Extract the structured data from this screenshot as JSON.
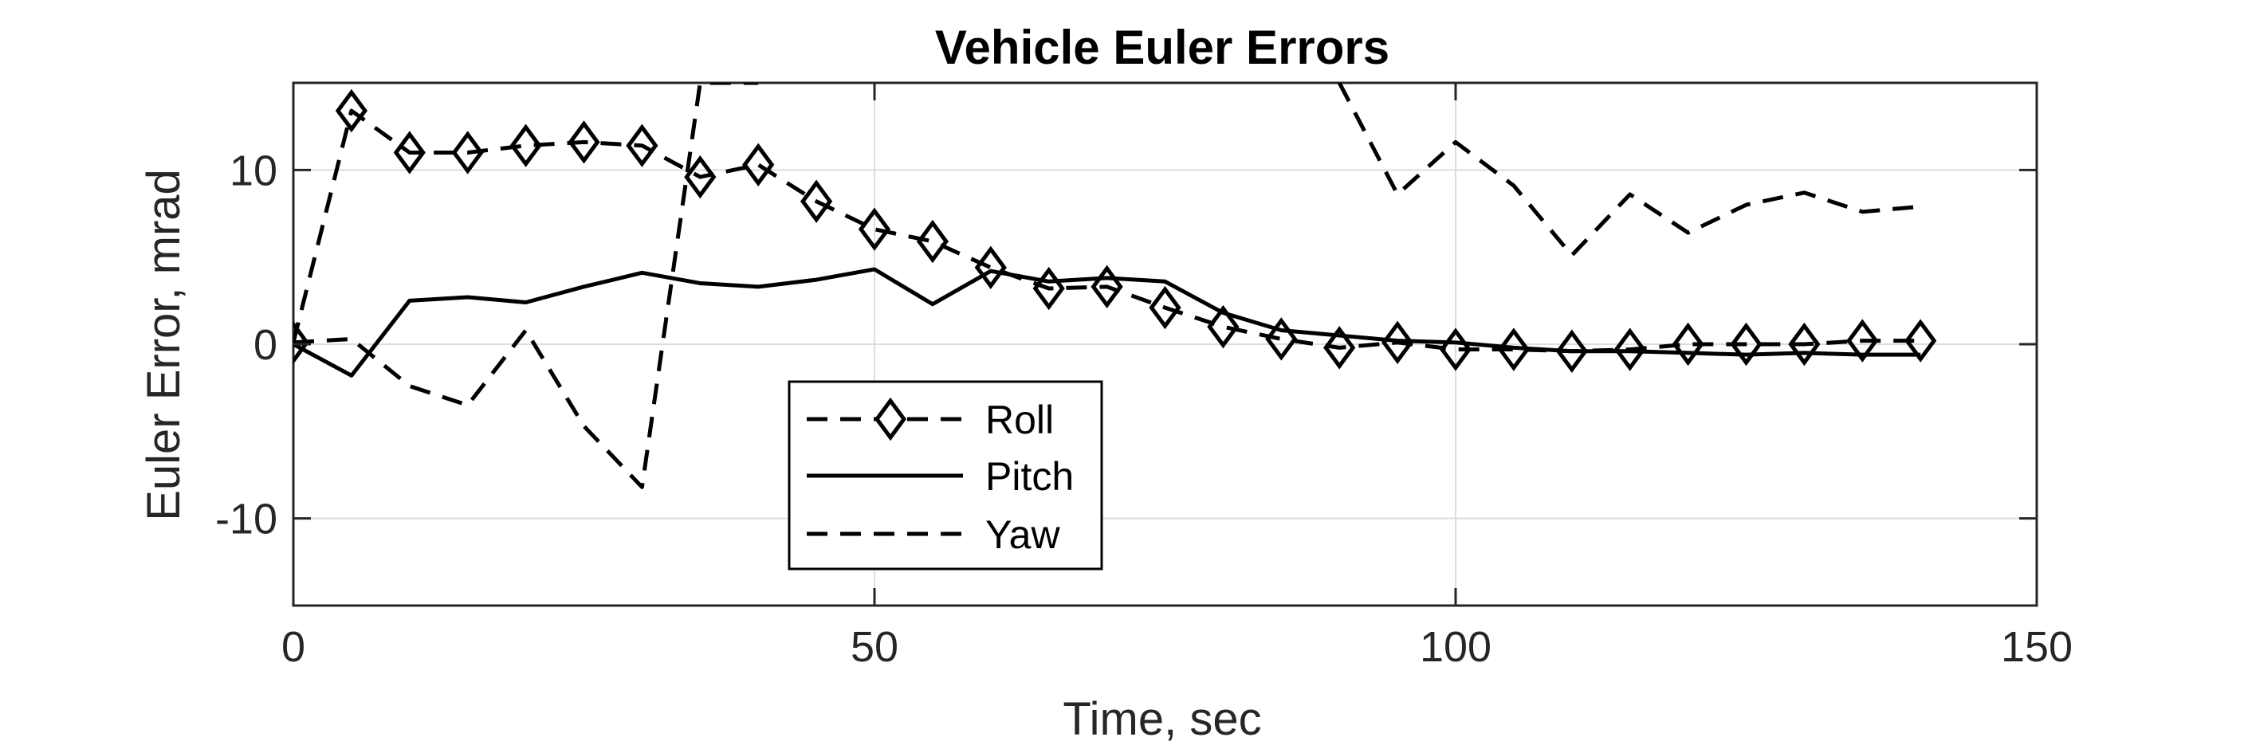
{
  "chart_data": {
    "type": "line",
    "title": "Vehicle Euler Errors",
    "xlabel": "Time, sec",
    "ylabel": "Euler Error, mrad",
    "xlim": [
      0,
      150
    ],
    "ylim": [
      -15,
      15
    ],
    "xticks": [
      0,
      50,
      100,
      150
    ],
    "yticks": [
      -10,
      0,
      10
    ],
    "xtick_labels": [
      "0",
      "50",
      "100",
      "150"
    ],
    "ytick_labels": [
      "-10",
      "0",
      "10"
    ],
    "grid": true,
    "legend_position": "lower-left-center",
    "x": [
      0,
      5,
      10,
      15,
      20,
      25,
      30,
      35,
      40,
      45,
      50,
      55,
      60,
      65,
      70,
      75,
      80,
      85,
      90,
      95,
      100,
      105,
      110,
      115,
      120,
      125,
      130,
      135,
      140
    ],
    "series": [
      {
        "name": "Roll",
        "style": "dashed-diamond",
        "values": [
          0.1,
          13.4,
          11.0,
          11.0,
          11.4,
          11.6,
          11.4,
          9.6,
          10.3,
          8.2,
          6.6,
          5.9,
          4.4,
          3.2,
          3.3,
          2.1,
          1.0,
          0.3,
          -0.2,
          0.1,
          -0.3,
          -0.3,
          -0.4,
          -0.3,
          0.0,
          0.0,
          0.0,
          0.2,
          0.2
        ]
      },
      {
        "name": "Pitch",
        "style": "solid",
        "values": [
          0.0,
          -1.8,
          2.5,
          2.7,
          2.4,
          3.3,
          4.1,
          3.5,
          3.3,
          3.7,
          4.3,
          2.3,
          4.2,
          3.6,
          3.8,
          3.6,
          1.8,
          0.8,
          0.5,
          0.2,
          0.1,
          -0.2,
          -0.4,
          -0.4,
          -0.5,
          -0.6,
          -0.5,
          -0.6,
          -0.6
        ]
      },
      {
        "name": "Yaw",
        "style": "dashed",
        "values": [
          0.1,
          0.3,
          -2.4,
          -3.5,
          0.8,
          -4.7,
          -8.2,
          15.0,
          15.0,
          null,
          null,
          null,
          null,
          null,
          null,
          null,
          null,
          null,
          15.0,
          8.6,
          11.6,
          9.1,
          5.1,
          8.6,
          6.4,
          8.0,
          8.7,
          7.6,
          7.9
        ]
      }
    ]
  },
  "colors": {
    "line": "#000000",
    "axis": "#262626",
    "grid": "#dcdcdc"
  }
}
